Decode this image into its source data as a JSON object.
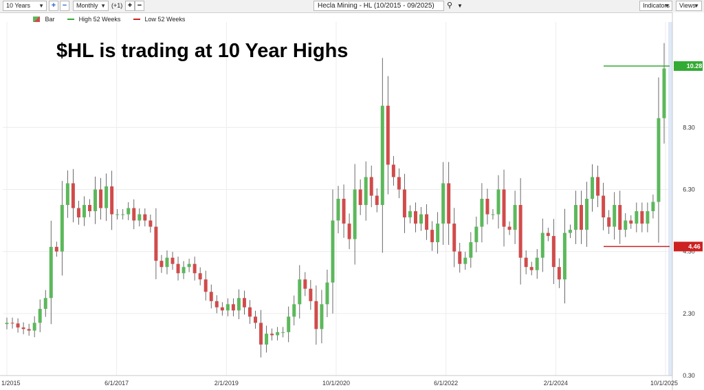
{
  "toolbar": {
    "range": "10 Years",
    "interval": "Monthly",
    "offset": "(+1)",
    "symbol_title": "Hecla Mining - HL (10/2015 - 09/2025)",
    "indicators": "Indicators",
    "views": "Views"
  },
  "legend": {
    "bar": "Bar",
    "high": "High 52 Weeks",
    "low": "Low 52 Weeks"
  },
  "colors": {
    "up": "#5cb85c",
    "down": "#d14b4b",
    "high_line": "#33aa33",
    "low_line": "#cc2222"
  },
  "chart_data": {
    "type": "candlestick",
    "title": "$HL is trading at 10 Year Highs",
    "x_tick_labels": [
      "1/2015",
      "6/1/2017",
      "2/1/2019",
      "10/1/2020",
      "6/1/2022",
      "2/1/2024",
      "10/1/2025"
    ],
    "y_tick_labels": [
      "0.30",
      "2.30",
      "4.30",
      "6.30",
      "8.30"
    ],
    "ylim": [
      0.3,
      11.7
    ],
    "high_52_weeks": {
      "label": "10.28",
      "value": 10.28
    },
    "low_52_weeks": {
      "label": "4.46",
      "value": 4.46
    },
    "closes": [
      2.0,
      1.98,
      1.85,
      1.8,
      1.75,
      2.0,
      2.45,
      2.8,
      4.45,
      4.3,
      5.8,
      6.5,
      5.7,
      5.4,
      5.8,
      5.6,
      6.3,
      5.7,
      6.4,
      5.5,
      5.5,
      5.5,
      5.7,
      5.3,
      5.5,
      5.3,
      5.1,
      4.0,
      3.8,
      4.1,
      3.9,
      3.6,
      3.8,
      3.9,
      3.6,
      3.4,
      3.0,
      2.7,
      2.5,
      2.4,
      2.6,
      2.4,
      2.8,
      2.5,
      2.2,
      2.0,
      1.3,
      1.65,
      1.6,
      1.7,
      1.7,
      2.2,
      2.6,
      3.4,
      3.1,
      2.7,
      1.8,
      2.6,
      3.3,
      5.3,
      6.0,
      5.2,
      4.7,
      6.3,
      5.8,
      6.7,
      6.1,
      5.8,
      9.0,
      7.1,
      6.7,
      6.3,
      5.4,
      5.6,
      5.2,
      5.5,
      5.0,
      4.6,
      5.2,
      6.5,
      5.2,
      4.3,
      3.9,
      4.1,
      4.6,
      5.1,
      6.0,
      5.5,
      5.5,
      6.3,
      5.1,
      5.0,
      5.8,
      4.1,
      3.8,
      3.7,
      4.1,
      4.9,
      4.8,
      3.8,
      3.4,
      4.9,
      5.0,
      5.8,
      5.0,
      6.0,
      6.7,
      6.1,
      5.4,
      5.1,
      5.8,
      5.0,
      5.3,
      5.2,
      5.6,
      5.2,
      5.6,
      5.9,
      8.6,
      10.2
    ],
    "grid": true,
    "legend_position": "top-left"
  }
}
